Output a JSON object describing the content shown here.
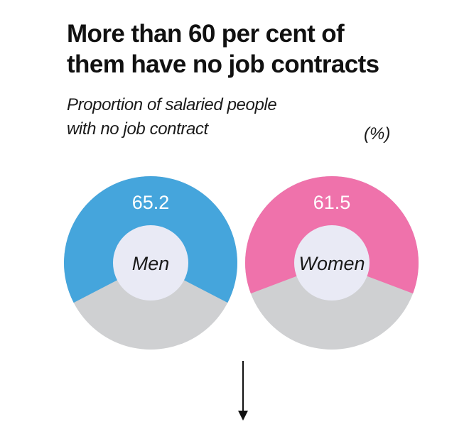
{
  "header": {
    "title_lines": [
      "More than 60 per cent of",
      "them have no job contracts"
    ],
    "subtitle_lines": [
      "Proportion of salaried people",
      "with no job contract"
    ],
    "unit": "(%)"
  },
  "chart_data": {
    "type": "pie",
    "title": "More than 60 per cent of them have no job contracts",
    "subtitle": "Proportion of salaried people with no job contract",
    "unit": "(%)",
    "categories": [
      "Men",
      "Women"
    ],
    "values": [
      65.2,
      61.5
    ],
    "colors": [
      "#45a5dc",
      "#ef72ab"
    ],
    "remainder_color": "#cfd0d2",
    "center_color": "#e9eaf5"
  }
}
